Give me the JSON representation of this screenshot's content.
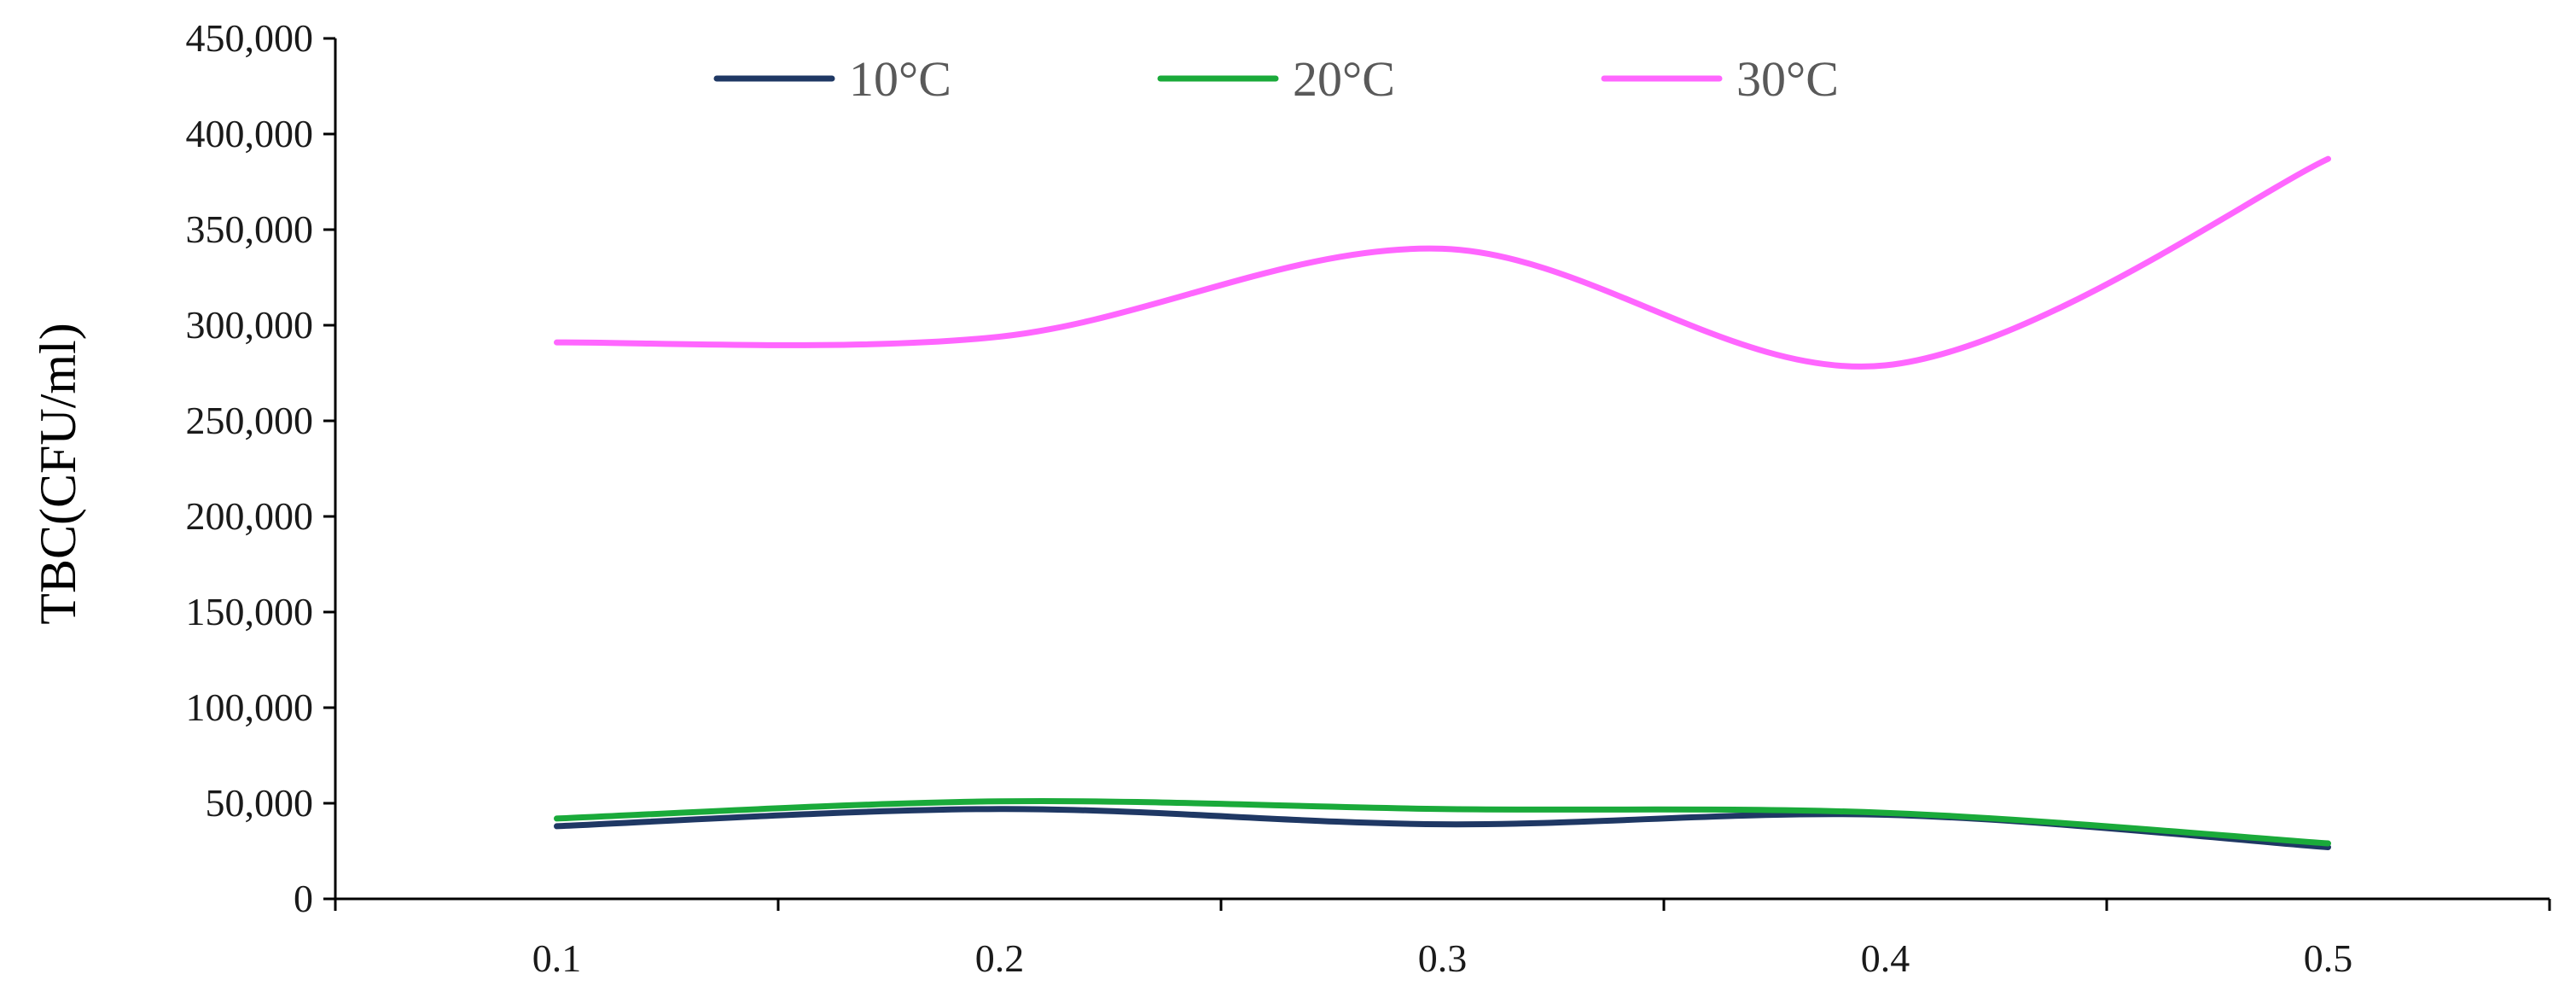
{
  "chart_data": {
    "type": "line",
    "smooth": true,
    "title": "",
    "xlabel": "",
    "ylabel": "TBC(CFU/ml)",
    "categories": [
      "0.1",
      "0.2",
      "0.3",
      "0.4",
      "0.5"
    ],
    "ylim": [
      0,
      450000
    ],
    "yticks": [
      0,
      50000,
      100000,
      150000,
      200000,
      250000,
      300000,
      350000,
      400000,
      450000
    ],
    "ytick_labels": [
      "0",
      "50,000",
      "100,000",
      "150,000",
      "200,000",
      "250,000",
      "300,000",
      "350,000",
      "400,000",
      "450,000"
    ],
    "grid": false,
    "legend_position": "top",
    "series": [
      {
        "name": "10°C",
        "color": "#1f3864",
        "values": [
          38000,
          47000,
          39000,
          44000,
          27000
        ]
      },
      {
        "name": "20°C",
        "color": "#1aaa3a",
        "values": [
          42000,
          51000,
          47000,
          45000,
          29000
        ]
      },
      {
        "name": "30°C",
        "color": "#ff66ff",
        "values": [
          291000,
          294000,
          340000,
          279000,
          387000
        ]
      }
    ]
  }
}
